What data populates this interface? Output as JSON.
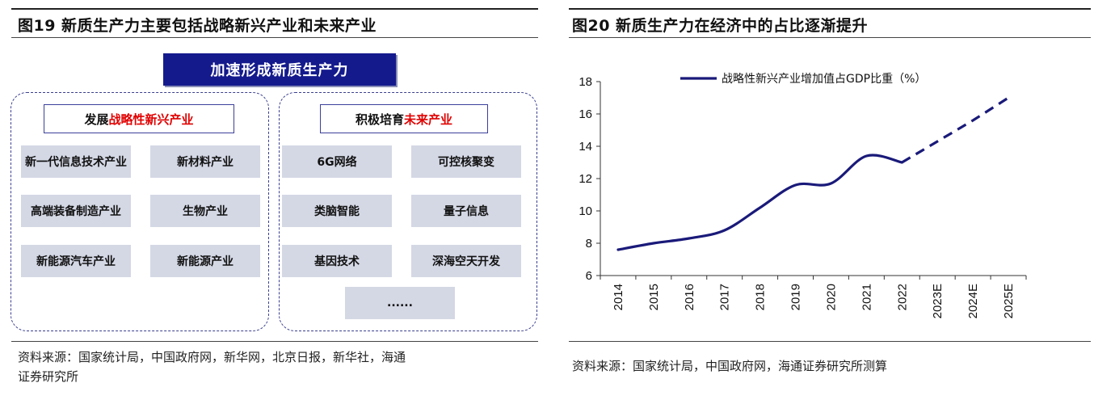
{
  "left": {
    "title": "图19 新质生产力主要包括战略新兴产业和未来产业",
    "banner": "加速形成新质生产力",
    "group_a": {
      "label_prefix": "发展",
      "label_highlight": "战略性新兴产业",
      "items": [
        "新一代信息技术产业",
        "新材料产业",
        "高端装备制造产业",
        "生物产业",
        "新能源汽车产业",
        "新能源产业"
      ]
    },
    "group_b": {
      "label_prefix": "积极培育",
      "label_highlight": "未来产业",
      "items": [
        "6G网络",
        "可控核聚变",
        "类脑智能",
        "量子信息",
        "基因技术",
        "深海空天开发",
        "......"
      ]
    },
    "source_lines": [
      "资料来源：国家统计局，中国政府网，新华网，北京日报，新华社，海通",
      "证券研究所"
    ]
  },
  "right": {
    "title": "图20 新质生产力在经济中的占比逐渐提升",
    "source": "资料来源：国家统计局，中国政府网，海通证券研究所测算"
  },
  "chart_data": {
    "type": "line",
    "title": "图20 新质生产力在经济中的占比逐渐提升",
    "categories": [
      "2014",
      "2015",
      "2016",
      "2017",
      "2018",
      "2019",
      "2020",
      "2021",
      "2022",
      "2023E",
      "2024E",
      "2025E"
    ],
    "series": [
      {
        "name": "战略性新兴产业增加值占GDP比重（%）",
        "values": [
          7.6,
          8.0,
          8.3,
          8.8,
          10.2,
          11.6,
          11.7,
          13.4,
          13.0,
          14.3,
          15.6,
          17.0
        ],
        "actual_through": "2022",
        "projected_from": "2022",
        "color": "#1a1a7a"
      }
    ],
    "ylim": [
      6,
      18
    ],
    "yticks": [
      6,
      8,
      10,
      12,
      14,
      16,
      18
    ],
    "grid": false,
    "legend_position": "top"
  }
}
